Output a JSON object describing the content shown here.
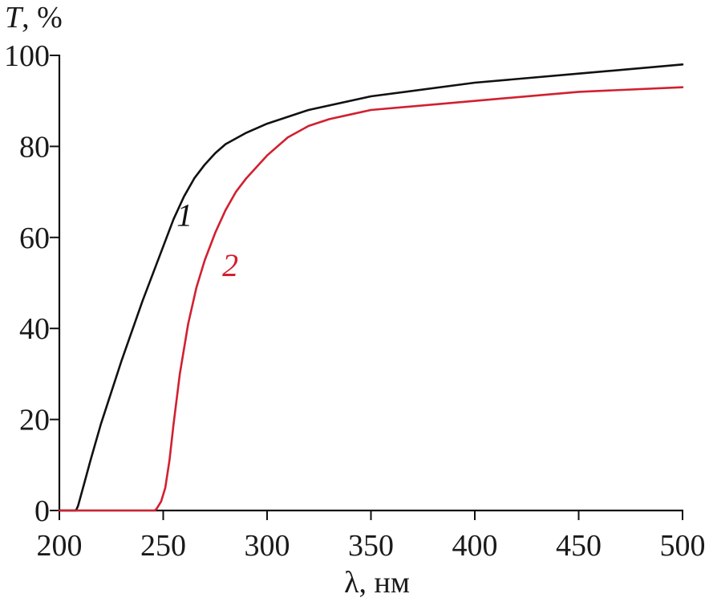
{
  "chart_data": {
    "type": "line",
    "ylabel": "T, %",
    "xlabel": "λ, нм",
    "xlim": [
      200,
      500
    ],
    "ylim": [
      0,
      100
    ],
    "x_ticks": [
      200,
      250,
      300,
      350,
      400,
      450,
      500
    ],
    "y_ticks": [
      0,
      20,
      40,
      60,
      80,
      100
    ],
    "grid": false,
    "series": [
      {
        "name": "1",
        "color": "#111111",
        "x": [
          200,
          208,
          209,
          212,
          215,
          220,
          230,
          240,
          250,
          255,
          260,
          265,
          270,
          275,
          280,
          290,
          300,
          320,
          350,
          400,
          450,
          500
        ],
        "y": [
          0,
          0,
          1,
          6,
          11,
          19,
          33,
          46,
          58,
          64,
          69,
          73,
          76,
          78.5,
          80.5,
          83,
          85,
          88,
          91,
          94,
          96,
          98
        ]
      },
      {
        "name": "2",
        "color": "#d12030",
        "x": [
          200,
          246,
          247,
          249,
          251,
          253,
          255,
          258,
          262,
          266,
          270,
          275,
          280,
          285,
          290,
          300,
          310,
          320,
          330,
          340,
          350,
          400,
          450,
          500
        ],
        "y": [
          0,
          0,
          0.5,
          2,
          5,
          11,
          19,
          30,
          41,
          49,
          55,
          61,
          66,
          70,
          73,
          78,
          82,
          84.5,
          86,
          87,
          88,
          90,
          92,
          93
        ]
      }
    ],
    "annotations": [
      {
        "text": "1",
        "x": 268,
        "y": 65,
        "color": "#111111"
      },
      {
        "text": "2",
        "x": 290,
        "y": 54,
        "color": "#d12030"
      }
    ]
  }
}
